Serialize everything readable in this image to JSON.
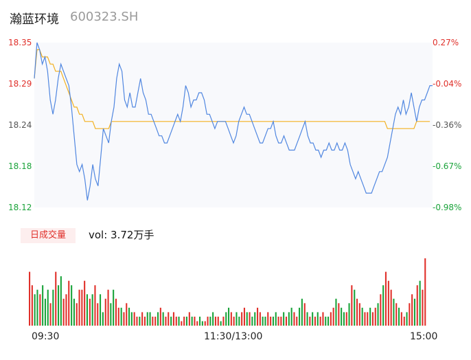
{
  "header": {
    "name": "瀚蓝环境",
    "code": "600323.SH"
  },
  "colors": {
    "up": "#e0302a",
    "down": "#1aa33a",
    "price_line": "#4f86e0",
    "avg_line": "#f2b01e",
    "neutral": "#555555"
  },
  "volume_panel": {
    "badge": "日成交量",
    "vol_label": "vol: 3.72万手"
  },
  "chart_data": {
    "type": "line",
    "title": "",
    "ylim": [
      18.12,
      18.35
    ],
    "y_left_ticks": [
      "18.35",
      "18.29",
      "18.24",
      "18.18",
      "18.12"
    ],
    "y_right_ticks": [
      "0.27%",
      "-0.04%",
      "-0.36%",
      "-0.67%",
      "-0.98%"
    ],
    "x_ticks": [
      "09:30",
      "11:30/13:00",
      "15:00"
    ],
    "price": [
      18.3,
      18.35,
      18.34,
      18.32,
      18.33,
      18.31,
      18.27,
      18.25,
      18.27,
      18.3,
      18.32,
      18.31,
      18.3,
      18.29,
      18.26,
      18.22,
      18.18,
      18.17,
      18.18,
      18.16,
      18.13,
      18.15,
      18.18,
      18.16,
      18.15,
      18.19,
      18.23,
      18.22,
      18.21,
      18.24,
      18.26,
      18.3,
      18.32,
      18.31,
      18.27,
      18.26,
      18.28,
      18.26,
      18.26,
      18.28,
      18.3,
      18.28,
      18.27,
      18.25,
      18.25,
      18.24,
      18.23,
      18.22,
      18.22,
      18.21,
      18.21,
      18.22,
      18.23,
      18.24,
      18.25,
      18.24,
      18.26,
      18.29,
      18.28,
      18.26,
      18.27,
      18.27,
      18.28,
      18.28,
      18.27,
      18.25,
      18.25,
      18.24,
      18.23,
      18.24,
      18.24,
      18.24,
      18.24,
      18.23,
      18.22,
      18.21,
      18.22,
      18.24,
      18.25,
      18.26,
      18.25,
      18.25,
      18.24,
      18.23,
      18.22,
      18.21,
      18.21,
      18.22,
      18.23,
      18.23,
      18.24,
      18.22,
      18.21,
      18.21,
      18.22,
      18.21,
      18.2,
      18.2,
      18.2,
      18.21,
      18.22,
      18.23,
      18.24,
      18.22,
      18.21,
      18.21,
      18.2,
      18.2,
      18.19,
      18.2,
      18.2,
      18.21,
      18.2,
      18.2,
      18.21,
      18.2,
      18.2,
      18.21,
      18.2,
      18.18,
      18.17,
      18.16,
      18.17,
      18.16,
      18.15,
      18.14,
      18.14,
      18.14,
      18.15,
      18.16,
      18.17,
      18.17,
      18.18,
      18.19,
      18.21,
      18.23,
      18.25,
      18.26,
      18.25,
      18.27,
      18.25,
      18.26,
      18.28,
      18.26,
      18.24,
      18.26,
      18.27,
      18.27,
      18.28,
      18.29,
      18.29
    ],
    "average": [
      18.3,
      18.34,
      18.34,
      18.33,
      18.33,
      18.33,
      18.32,
      18.32,
      18.31,
      18.31,
      18.31,
      18.3,
      18.29,
      18.28,
      18.27,
      18.26,
      18.26,
      18.25,
      18.25,
      18.24,
      18.24,
      18.24,
      18.24,
      18.23,
      18.23,
      18.23,
      18.23,
      18.23,
      18.23,
      18.24,
      18.24,
      18.24,
      18.24,
      18.24,
      18.24,
      18.24,
      18.24,
      18.24,
      18.24,
      18.24,
      18.24,
      18.24,
      18.24,
      18.24,
      18.24,
      18.24,
      18.24,
      18.24,
      18.24,
      18.24,
      18.24,
      18.24,
      18.24,
      18.24,
      18.24,
      18.24,
      18.24,
      18.24,
      18.24,
      18.24,
      18.24,
      18.24,
      18.24,
      18.24,
      18.24,
      18.24,
      18.24,
      18.24,
      18.24,
      18.24,
      18.24,
      18.24,
      18.24,
      18.24,
      18.24,
      18.24,
      18.24,
      18.24,
      18.24,
      18.24,
      18.24,
      18.24,
      18.24,
      18.24,
      18.24,
      18.24,
      18.24,
      18.24,
      18.24,
      18.24,
      18.24,
      18.24,
      18.24,
      18.24,
      18.24,
      18.24,
      18.24,
      18.24,
      18.24,
      18.24,
      18.24,
      18.24,
      18.24,
      18.24,
      18.24,
      18.24,
      18.24,
      18.24,
      18.24,
      18.24,
      18.24,
      18.24,
      18.24,
      18.24,
      18.24,
      18.24,
      18.24,
      18.24,
      18.24,
      18.24,
      18.24,
      18.24,
      18.24,
      18.24,
      18.24,
      18.24,
      18.24,
      18.24,
      18.24,
      18.24,
      18.24,
      18.24,
      18.24,
      18.23,
      18.23,
      18.23,
      18.23,
      18.23,
      18.23,
      18.23,
      18.23,
      18.23,
      18.23,
      18.23,
      18.24,
      18.24,
      18.24,
      18.24,
      18.24,
      18.24
    ],
    "volume": [
      12,
      9,
      7,
      8,
      7,
      9,
      6,
      8,
      5,
      8,
      12,
      9,
      11,
      6,
      7,
      10,
      9,
      6,
      5,
      8,
      8,
      10,
      7,
      6,
      7,
      9,
      5,
      7,
      3,
      6,
      8,
      5,
      8,
      6,
      4,
      4,
      3,
      5,
      4,
      3,
      3,
      2,
      2,
      3,
      2,
      3,
      3,
      2,
      2,
      3,
      4,
      3,
      2,
      3,
      2,
      3,
      2,
      2,
      1,
      2,
      2,
      3,
      2,
      2,
      1,
      2,
      1,
      1,
      2,
      2,
      3,
      2,
      2,
      1,
      2,
      3,
      4,
      3,
      2,
      3,
      2,
      3,
      4,
      3,
      3,
      2,
      3,
      4,
      3,
      2,
      2,
      3,
      2,
      2,
      3,
      2,
      2,
      3,
      2,
      3,
      4,
      3,
      2,
      4,
      6,
      5,
      3,
      2,
      3,
      2,
      3,
      2,
      3,
      2,
      2,
      3,
      4,
      6,
      5,
      4,
      3,
      3,
      5,
      9,
      8,
      6,
      5,
      4,
      3,
      3,
      4,
      3,
      4,
      5,
      7,
      9,
      12,
      10,
      8,
      6,
      5,
      4,
      3,
      2,
      3,
      5,
      7,
      6,
      9,
      10,
      8,
      15
    ],
    "volume_dir": [
      "up",
      "up",
      "down",
      "down",
      "up",
      "down",
      "down",
      "down",
      "up",
      "down",
      "up",
      "down",
      "down",
      "up",
      "up",
      "up",
      "down",
      "down",
      "up",
      "up",
      "up",
      "up",
      "down",
      "up",
      "down",
      "up",
      "up",
      "down",
      "down",
      "up",
      "up",
      "down",
      "down",
      "up",
      "up",
      "down",
      "up",
      "up",
      "down",
      "down",
      "up",
      "up",
      "down",
      "up",
      "up",
      "down",
      "down",
      "up",
      "up",
      "down",
      "up",
      "down",
      "up",
      "up",
      "down",
      "up",
      "up",
      "down",
      "up",
      "up",
      "down",
      "up",
      "down",
      "up",
      "up",
      "down",
      "down",
      "up",
      "up",
      "down",
      "down",
      "up",
      "up",
      "down",
      "up",
      "down",
      "down",
      "up",
      "up",
      "down",
      "down",
      "up",
      "up",
      "down",
      "up",
      "down",
      "down",
      "up",
      "up",
      "down",
      "down",
      "up",
      "up",
      "down",
      "down",
      "up",
      "up",
      "down",
      "up",
      "down",
      "down",
      "up",
      "up",
      "down",
      "down",
      "up",
      "down",
      "up",
      "down",
      "up",
      "down",
      "up",
      "up",
      "down",
      "down",
      "up",
      "up",
      "down",
      "up",
      "down",
      "down",
      "up",
      "down",
      "up",
      "down",
      "up",
      "up",
      "down",
      "up",
      "up",
      "down",
      "up",
      "up",
      "down",
      "up",
      "down",
      "up",
      "up",
      "up",
      "down",
      "up",
      "down",
      "up",
      "up",
      "down",
      "up",
      "up",
      "down",
      "up",
      "down",
      "up",
      "up"
    ]
  }
}
